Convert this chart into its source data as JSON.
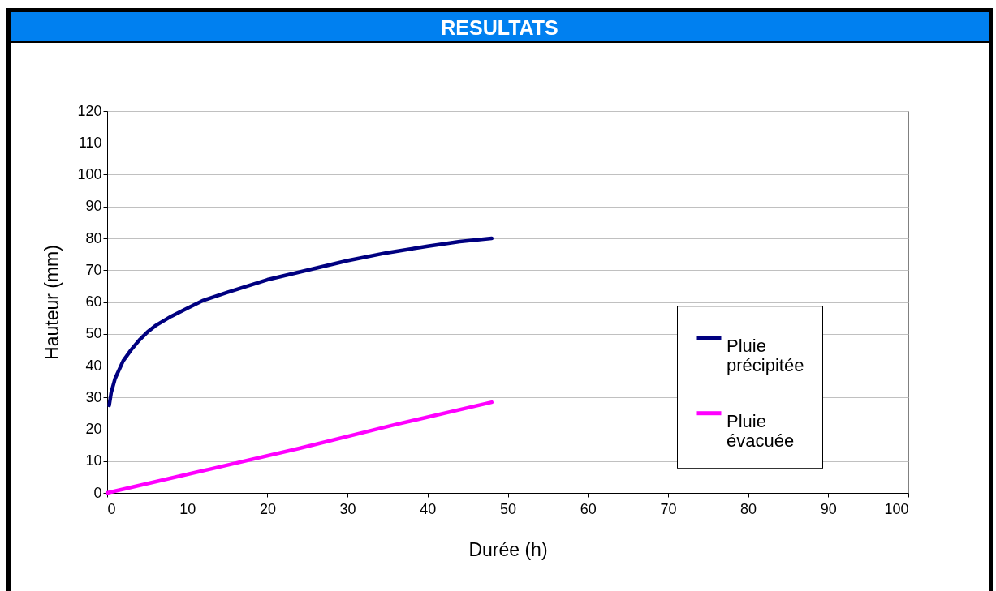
{
  "chart_data": {
    "type": "line",
    "title": "RESULTATS",
    "xlabel": "Durée (h)",
    "ylabel": "Hauteur (mm)",
    "xlim": [
      0,
      100
    ],
    "xticks": [
      0,
      10,
      20,
      30,
      40,
      50,
      60,
      70,
      80,
      90,
      100
    ],
    "ylim": [
      0,
      120
    ],
    "yticks": [
      0,
      10,
      20,
      30,
      40,
      50,
      60,
      70,
      80,
      90,
      100,
      110,
      120
    ],
    "grid": "y",
    "legend": "right",
    "line_style": "solid",
    "marker": "none",
    "series": [
      {
        "name": "Pluie précipitée",
        "color": "#000080",
        "x": [
          0.25,
          0.5,
          1,
          2,
          3,
          4,
          5,
          6,
          8,
          10,
          12,
          15,
          20,
          25,
          30,
          35,
          40,
          44,
          48
        ],
        "values": [
          27.5,
          31.5,
          36,
          41.5,
          45,
          48,
          50.5,
          52.5,
          55.5,
          58,
          60.5,
          63,
          67,
          70,
          73,
          75.5,
          77.5,
          79,
          80
        ]
      },
      {
        "name": "Pluie évacuée",
        "color": "#ff00ff",
        "x": [
          0,
          12,
          24,
          36,
          48
        ],
        "values": [
          0,
          7,
          14,
          21.5,
          28.5
        ]
      }
    ]
  }
}
